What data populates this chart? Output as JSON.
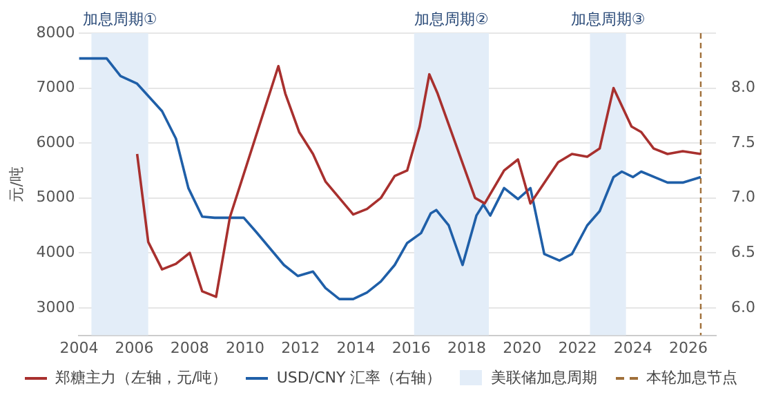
{
  "chart_data": {
    "type": "line",
    "ylabel": "元/吨",
    "series": [
      {
        "name": "郑糖主力（左轴，元/吨）",
        "color": "#a8302e",
        "x": [
          2006.1,
          2006.5,
          2007.0,
          2007.5,
          2008.0,
          2008.45,
          2008.95,
          2009.45,
          2011.2,
          2011.45,
          2011.95,
          2012.45,
          2012.9,
          2013.9,
          2014.4,
          2014.9,
          2015.4,
          2015.85,
          2016.3,
          2016.65,
          2016.95,
          2018.3,
          2018.65,
          2019.35,
          2019.85,
          2020.3,
          2021.3,
          2021.8,
          2022.35,
          2022.8,
          2023.3,
          2023.95,
          2024.3,
          2024.75,
          2025.25,
          2025.8,
          2026.45
        ],
        "values": [
          5800,
          4200,
          3700,
          3800,
          4000,
          3300,
          3200,
          4650,
          7400,
          6900,
          6200,
          5800,
          5300,
          4700,
          4800,
          5000,
          5400,
          5500,
          6300,
          7250,
          6900,
          5000,
          4900,
          5500,
          5700,
          4900,
          5650,
          5800,
          5750,
          5900,
          7000,
          6300,
          6200,
          5900,
          5800,
          5850,
          5800
        ]
      },
      {
        "name": "USD/CNY 汇率（右轴）",
        "color": "#1f5fa8",
        "axis": "y2",
        "x": [
          2004.0,
          2005.0,
          2005.5,
          2006.1,
          2007.0,
          2007.5,
          2007.95,
          2008.45,
          2008.9,
          2009.95,
          2010.4,
          2011.4,
          2011.9,
          2012.45,
          2012.9,
          2013.4,
          2013.9,
          2014.4,
          2014.9,
          2015.4,
          2015.85,
          2016.35,
          2016.7,
          2016.9,
          2017.35,
          2017.85,
          2018.35,
          2018.6,
          2018.85,
          2019.35,
          2019.85,
          2020.3,
          2020.8,
          2021.35,
          2021.8,
          2022.35,
          2022.8,
          2023.3,
          2023.6,
          2024.0,
          2024.3,
          2025.25,
          2025.8,
          2026.45
        ],
        "values": [
          8.27,
          8.27,
          8.11,
          8.04,
          7.79,
          7.54,
          7.09,
          6.83,
          6.82,
          6.82,
          6.69,
          6.39,
          6.29,
          6.33,
          6.18,
          6.08,
          6.08,
          6.14,
          6.24,
          6.39,
          6.59,
          6.68,
          6.86,
          6.89,
          6.75,
          6.39,
          6.84,
          6.94,
          6.84,
          7.09,
          6.99,
          7.09,
          6.49,
          6.43,
          6.49,
          6.75,
          6.88,
          7.19,
          7.24,
          7.19,
          7.24,
          7.14,
          7.14,
          7.19
        ]
      }
    ],
    "xlim": [
      2004,
      2027
    ],
    "xticks": [
      2004,
      2006,
      2008,
      2010,
      2012,
      2014,
      2016,
      2018,
      2020,
      2022,
      2024,
      2026
    ],
    "ylim": [
      2500,
      8000
    ],
    "yticks": [
      3000,
      4000,
      5000,
      6000,
      7000,
      8000
    ],
    "y2lim": [
      5.75,
      8.5
    ],
    "y2ticks": [
      {
        "value": 6,
        "label": "6.0"
      },
      {
        "value": 6.5,
        "label": "6.5"
      },
      {
        "value": 7,
        "label": "7.0"
      },
      {
        "value": 7.5,
        "label": "7.5"
      },
      {
        "value": 8,
        "label": "8.0"
      }
    ],
    "bands": [
      {
        "axis": "x",
        "from": 2004.45,
        "to": 2006.5,
        "label": "加息周期①",
        "color": "#e3edf8"
      },
      {
        "axis": "x",
        "from": 2016.1,
        "to": 2018.8,
        "label": "加息周期②",
        "color": "#e3edf8"
      },
      {
        "axis": "x",
        "from": 2022.45,
        "to": 2023.75,
        "label": "加息周期③",
        "color": "#e3edf8"
      }
    ],
    "ref_lines": [
      {
        "axis": "x",
        "value": 2026.45,
        "label": "本轮加息节点",
        "color": "#a0703a",
        "line_style": "dashed"
      }
    ],
    "annotations": [
      "美联储加息周期"
    ],
    "grid": "y",
    "legend": "bottom",
    "marker": "none",
    "line_style": "solid"
  }
}
